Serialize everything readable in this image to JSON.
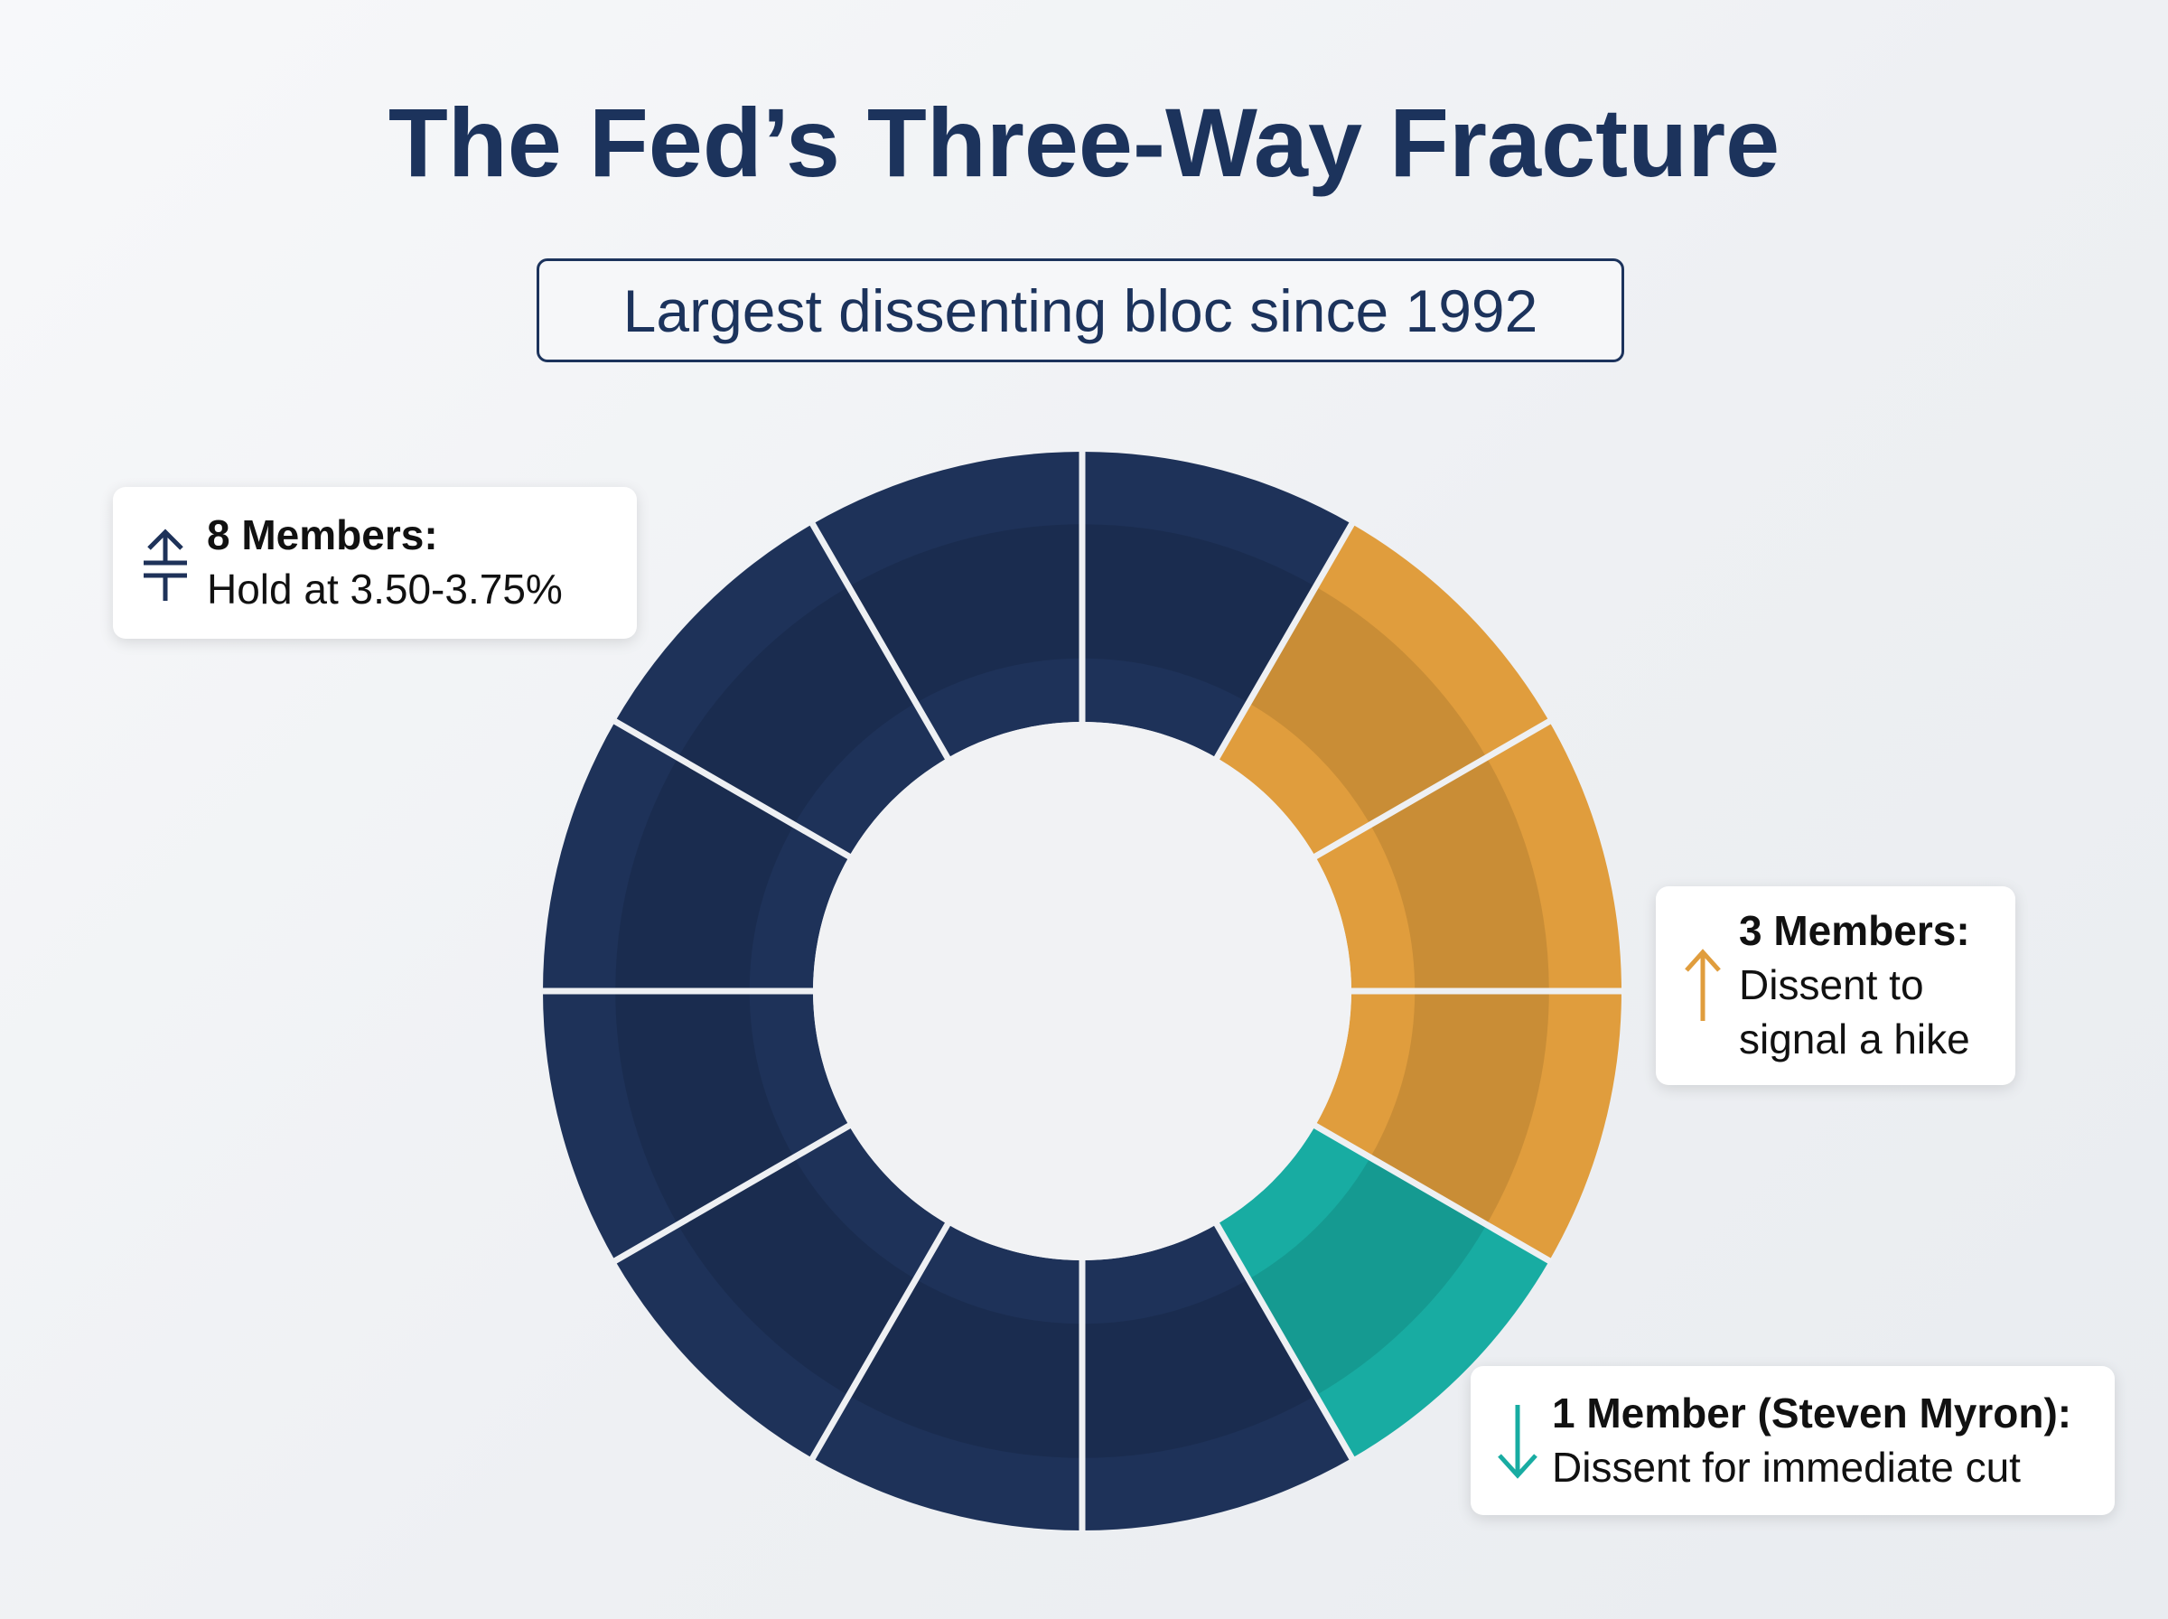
{
  "chart_data": {
    "type": "donut",
    "title": "The Fed’s Three-Way Fracture",
    "subtitle": "Largest dissenting bloc since 1992",
    "categories": [
      "8 Members:",
      "3 Members:",
      "1 Member (Steven Myron):"
    ],
    "descriptions": [
      "Hold at 3.50-3.75%",
      "Dissent to signal a hike",
      "Dissent for immediate cut"
    ],
    "values": [
      8,
      3,
      1
    ],
    "colors": [
      "#1e3259",
      "#e09d3d",
      "#18aca2"
    ]
  }
}
